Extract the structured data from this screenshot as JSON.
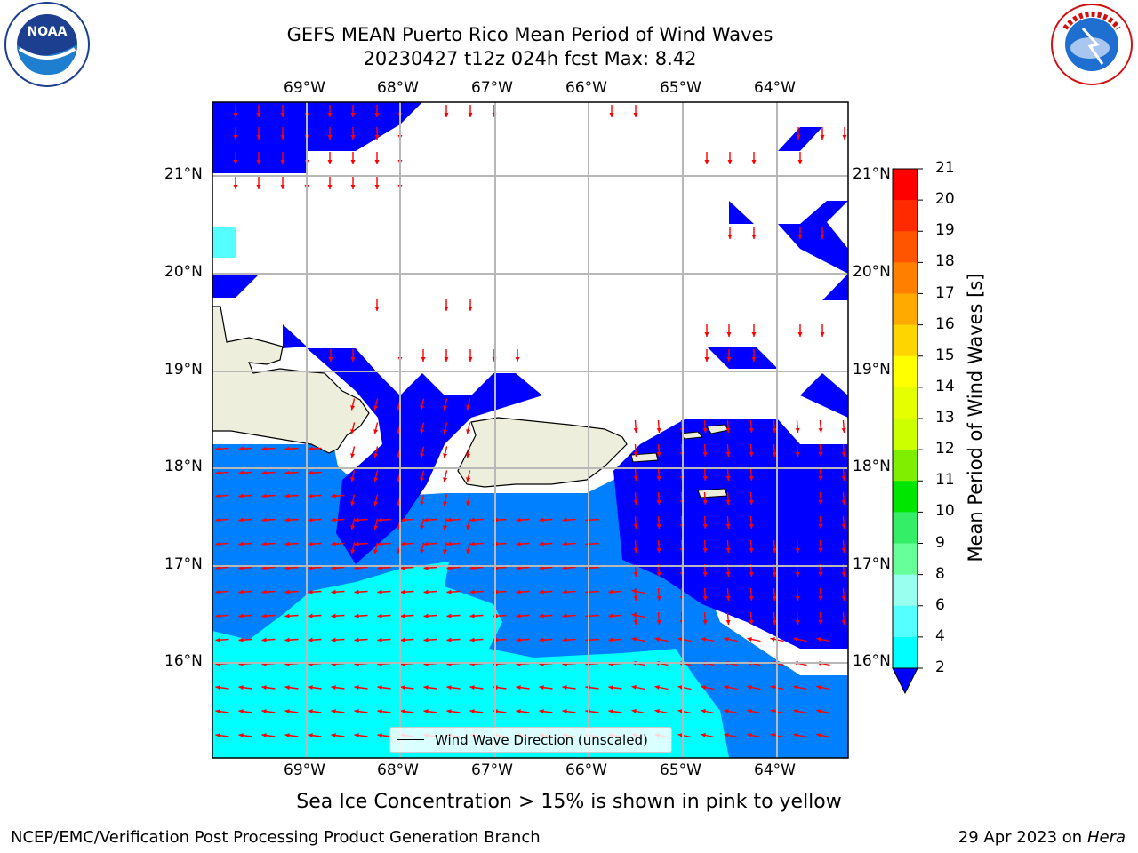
{
  "header": {
    "title_line1": "GEFS MEAN Puerto Rico Mean Period of Wind Waves",
    "title_line2": "20230427 t12z 024h fcst   Max: 8.42"
  },
  "logos": {
    "left": "noaa-logo",
    "right": "nws-logo",
    "left_text": "NOAA",
    "right_text": "NATIONAL WEATHER SERVICE"
  },
  "map": {
    "lon_ticks_top": [
      "69°W",
      "68°W",
      "67°W",
      "66°W",
      "65°W",
      "64°W"
    ],
    "lon_ticks_bottom": [
      "69°W",
      "68°W",
      "67°W",
      "66°W",
      "65°W",
      "64°W"
    ],
    "lat_ticks_left": [
      "21°N",
      "20°N",
      "19°N",
      "18°N",
      "17°N",
      "16°N"
    ],
    "lat_ticks_right": [
      "21°N",
      "20°N",
      "19°N",
      "18°N",
      "17°N",
      "16°N"
    ],
    "legend_label": "Wind Wave Direction (unscaled)",
    "land_color": "#eeeedc",
    "arrow_color": "#ff0000"
  },
  "colorbar": {
    "title": "Mean Period of Wind Waves [s]",
    "labels": [
      "21",
      "20",
      "19",
      "18",
      "17",
      "16",
      "15",
      "14",
      "13",
      "12",
      "11",
      "10",
      "9",
      "8",
      "6",
      "4",
      "2"
    ],
    "colors": [
      "#ff0000",
      "#ff2a00",
      "#ff5500",
      "#ff8000",
      "#ffaa00",
      "#ffd500",
      "#ffff00",
      "#e6ff00",
      "#ccff00",
      "#80ee00",
      "#00e600",
      "#33ee66",
      "#66ff99",
      "#99ffee",
      "#55ffff",
      "#00ffff",
      "#0080ff"
    ],
    "under_color": "#0000ff"
  },
  "chart_data": {
    "type": "heatmap",
    "title": "GEFS MEAN Puerto Rico Mean Period of Wind Waves",
    "subtitle": "20230427 t12z 024h fcst   Max: 8.42",
    "units": "s",
    "max_value": 8.42,
    "lon_range": [
      -70.0,
      -63.25
    ],
    "lat_range": [
      15.0,
      21.75
    ],
    "levels": [
      2,
      4,
      6,
      8,
      9,
      10,
      11,
      12,
      13,
      14,
      15,
      16,
      17,
      18,
      19,
      20,
      21
    ]
  },
  "caption": "Sea Ice Concentration > 15% is shown in pink to yellow",
  "footer": {
    "left": "NCEP/EMC/Verification Post Processing Product Generation Branch",
    "right_date": "29 Apr 2023 on ",
    "right_host": "Hera"
  }
}
